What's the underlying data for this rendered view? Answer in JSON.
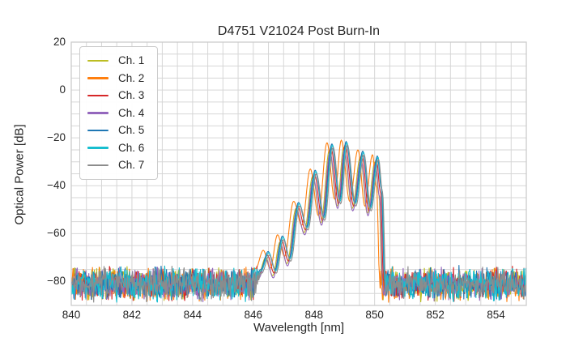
{
  "figure": {
    "background": "#ffffff"
  },
  "chart_data": {
    "type": "line",
    "title": "D4751 V21024 Post Burn-In",
    "xlabel": "Wavelength [nm]",
    "ylabel": "Optical Power [dB]",
    "xlim": [
      840,
      855
    ],
    "ylim": [
      -90,
      20
    ],
    "xticks": [
      840,
      842,
      844,
      846,
      848,
      850,
      852,
      854
    ],
    "yticks": [
      20,
      0,
      -20,
      -40,
      -60,
      -80
    ],
    "grid": {
      "visible": true,
      "x_step_nm": 0.5,
      "y_step_db": 5,
      "color": "#d6d6d6",
      "border_color": "#c9c9c9"
    },
    "text_color": "#262626",
    "noise_floor": {
      "mean_db": -81,
      "peak_to_peak_db": 16,
      "range_nm": [
        840,
        855
      ]
    },
    "band": {
      "start_nm": 846.3,
      "stop_nm": 850.35,
      "peak_nm": 849.0,
      "peak_db": -22
    },
    "spectral_envelope_db": [
      [
        846.0,
        -82.0
      ],
      [
        846.2,
        -76.0
      ],
      [
        846.45,
        -68.5
      ],
      [
        846.68,
        -76.0
      ],
      [
        846.92,
        -62.0
      ],
      [
        847.15,
        -71.0
      ],
      [
        847.45,
        -48.0
      ],
      [
        847.72,
        -58.0
      ],
      [
        848.0,
        -34.5
      ],
      [
        848.27,
        -54.0
      ],
      [
        848.55,
        -23.5
      ],
      [
        848.8,
        -47.0
      ],
      [
        849.02,
        -22.5
      ],
      [
        849.3,
        -48.0
      ],
      [
        849.57,
        -26.5
      ],
      [
        849.8,
        -50.0
      ],
      [
        850.05,
        -28.5
      ],
      [
        850.18,
        -42.0
      ],
      [
        850.3,
        -85.0
      ]
    ],
    "series": [
      {
        "name": "Ch. 1",
        "color": "#bcbd22",
        "shift_nm": -0.04,
        "gain_db": -1.5
      },
      {
        "name": "Ch. 2",
        "color": "#ff7f0e",
        "shift_nm": -0.12,
        "gain_db": 1.5
      },
      {
        "name": "Ch. 3",
        "color": "#d62728",
        "shift_nm": 0.01,
        "gain_db": -0.5
      },
      {
        "name": "Ch. 4",
        "color": "#9467bd",
        "shift_nm": -0.02,
        "gain_db": -2.5
      },
      {
        "name": "Ch. 5",
        "color": "#1f77b4",
        "shift_nm": 0.04,
        "gain_db": 1.0
      },
      {
        "name": "Ch. 6",
        "color": "#17becf",
        "shift_nm": 0.06,
        "gain_db": 0.5
      },
      {
        "name": "Ch. 7",
        "color": "#8c8c8c",
        "shift_nm": 0.08,
        "gain_db": -0.5
      }
    ],
    "legend": {
      "position": "upper-left",
      "border_color": "#cccccc",
      "background": "#ffffff"
    }
  }
}
